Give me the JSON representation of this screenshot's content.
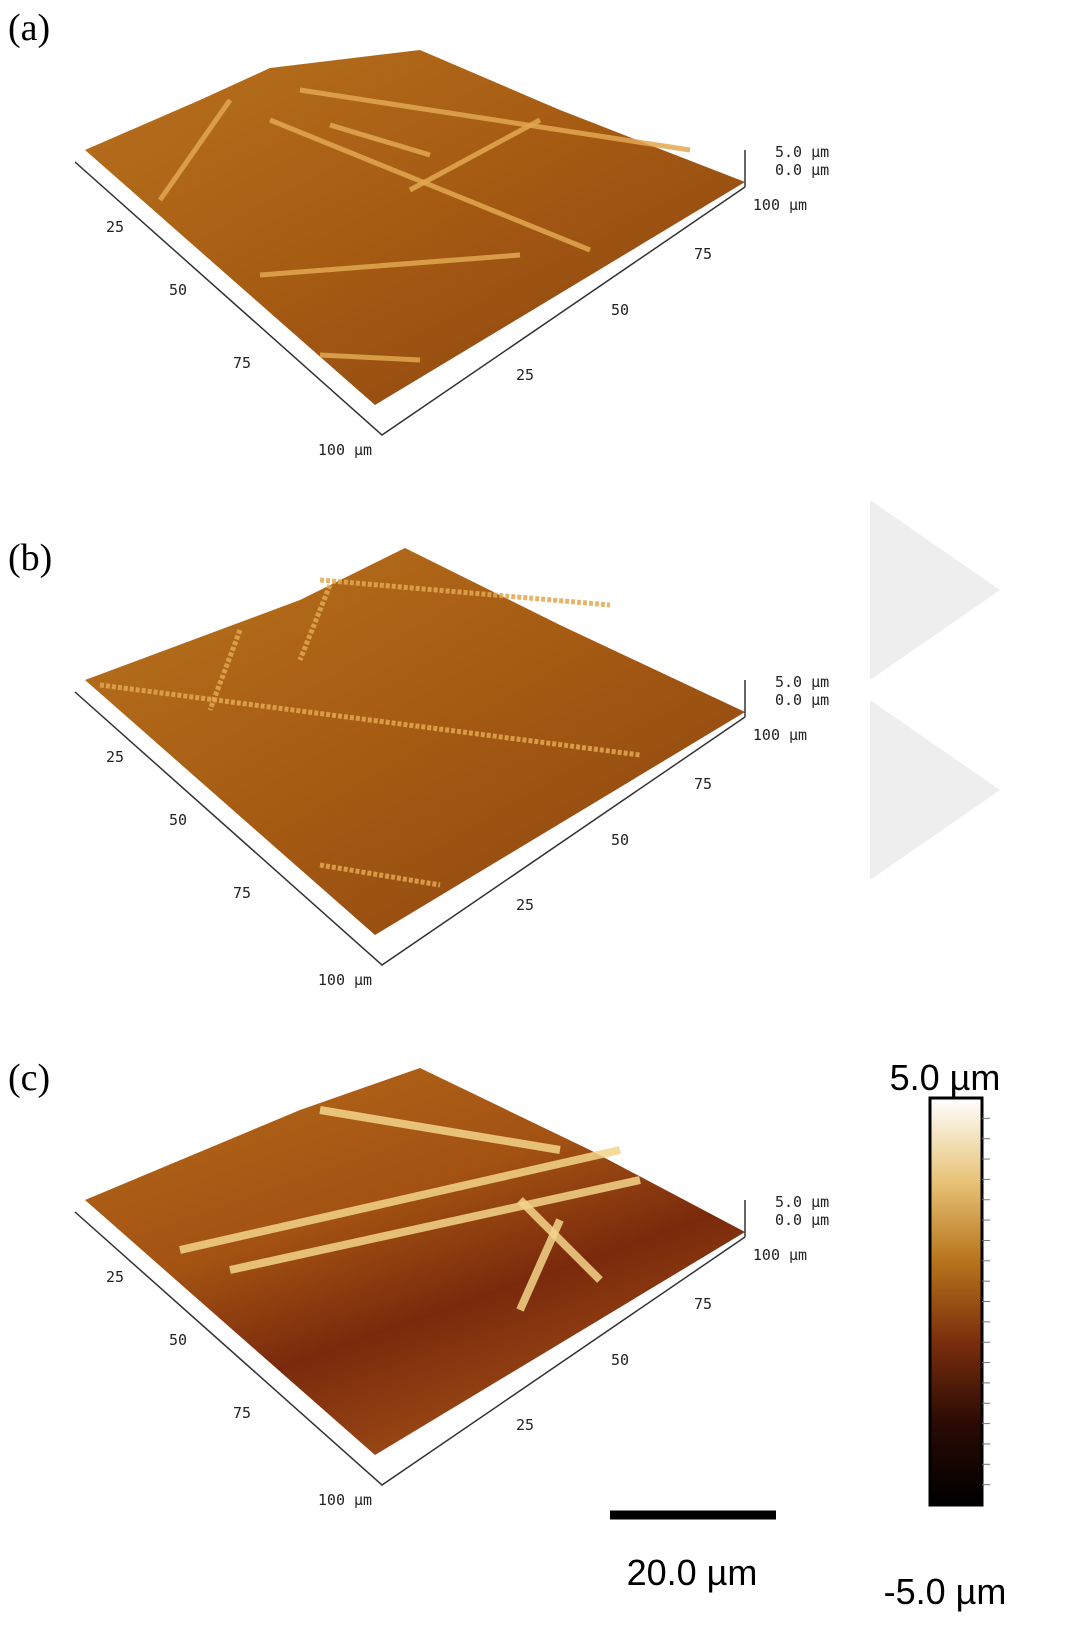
{
  "panels": [
    {
      "label": "(a)",
      "left_axis_ticks": [
        "25",
        "50",
        "75",
        "100 μm"
      ],
      "right_axis_ticks": [
        "25",
        "50",
        "75",
        "100 μm"
      ],
      "z_axis_labels": [
        "5.0 μm",
        "0.0 μm"
      ]
    },
    {
      "label": "(b)",
      "left_axis_ticks": [
        "25",
        "50",
        "75",
        "100 μm"
      ],
      "right_axis_ticks": [
        "25",
        "50",
        "75",
        "100 μm"
      ],
      "z_axis_labels": [
        "5.0 μm",
        "0.0 μm"
      ]
    },
    {
      "label": "(c)",
      "left_axis_ticks": [
        "25",
        "50",
        "75",
        "100 μm"
      ],
      "right_axis_ticks": [
        "25",
        "50",
        "75",
        "100 μm"
      ],
      "z_axis_labels": [
        "5.0 μm",
        "0.0 μm"
      ]
    }
  ],
  "color_bar": {
    "max_label": "5.0 µm",
    "min_label": "-5.0 µm"
  },
  "scale_bar": {
    "label": "20.0 µm"
  }
}
